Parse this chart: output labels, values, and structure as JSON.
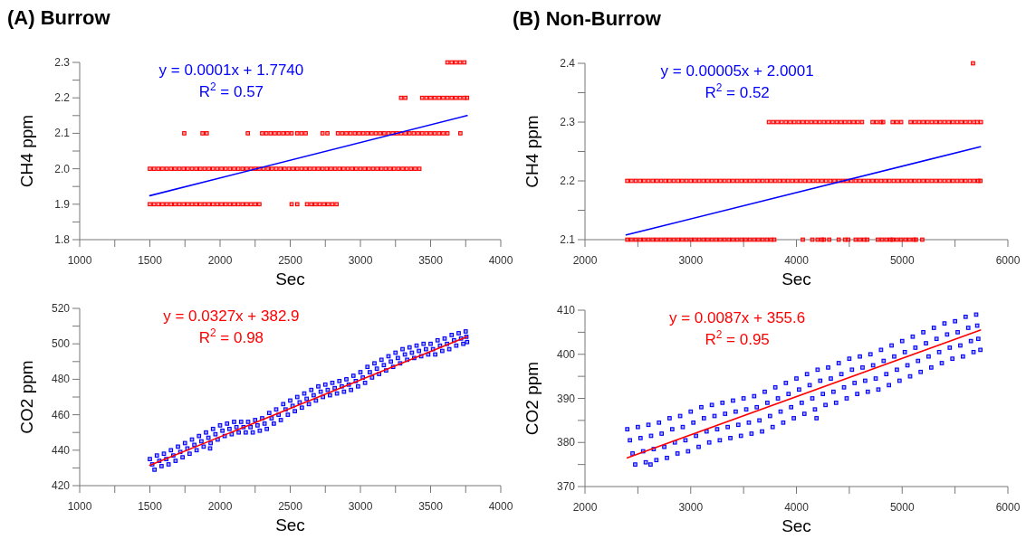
{
  "chart_data": [
    {
      "type": "scatter",
      "title": "(A) Burrow",
      "xlabel": "Sec",
      "ylabel": "CH4 ppm",
      "annotations": [
        "y = 0.0001x + 1.7740",
        "R$^{2}$ = 0.57"
      ],
      "xlim": [
        1000,
        4000
      ],
      "ylim": [
        1.8,
        2.3
      ],
      "xticks": [
        1000,
        {
          "value": 1250,
          "label": null
        },
        1500,
        {
          "value": 1750,
          "label": null
        },
        2000,
        {
          "value": 2250,
          "label": null
        },
        2500,
        {
          "value": 2750,
          "label": null
        },
        3000,
        {
          "value": 3250,
          "label": null
        },
        3500,
        {
          "value": 3750,
          "label": null
        },
        4000
      ],
      "yticks": [
        1.8,
        {
          "value": 1.85,
          "label": null
        },
        1.9,
        {
          "value": 1.95,
          "label": null
        },
        {
          "value": 2,
          "label": "2.0"
        },
        {
          "value": 2.05,
          "label": null
        },
        2.1,
        {
          "value": 2.15,
          "label": null
        },
        2.2,
        {
          "value": 2.25,
          "label": null
        },
        2.3
      ],
      "series": [
        {
          "type": "scatter",
          "color": "#ff0000",
          "marker": "square",
          "x": [
            1500,
            1530,
            1560,
            1590,
            1620,
            1650,
            1680,
            1710,
            1740,
            1770,
            1800,
            1830,
            1860,
            1890,
            1920,
            1950,
            1980,
            2010,
            2040,
            2070,
            2100,
            2130,
            2160,
            2190,
            2220,
            2250,
            2280,
            2510,
            2550,
            2620,
            2650,
            2680,
            2710,
            2740,
            2770,
            2800,
            2830
          ],
          "values": [
            1.9,
            1.9,
            1.9,
            1.9,
            1.9,
            1.9,
            1.9,
            1.9,
            1.9,
            1.9,
            1.9,
            1.9,
            1.9,
            1.9,
            1.9,
            1.9,
            1.9,
            1.9,
            1.9,
            1.9,
            1.9,
            1.9,
            1.9,
            1.9,
            1.9,
            1.9,
            1.9,
            1.9,
            1.9,
            1.9,
            1.9,
            1.9,
            1.9,
            1.9,
            1.9,
            1.9,
            1.9
          ]
        },
        {
          "type": "scatter",
          "color": "#ff0000",
          "marker": "square",
          "x": [
            1500,
            1530,
            1560,
            1590,
            1620,
            1650,
            1680,
            1710,
            1740,
            1770,
            1800,
            1830,
            1860,
            1890,
            1920,
            1950,
            1980,
            2010,
            2040,
            2070,
            2100,
            2130,
            2160,
            2190,
            2220,
            2250,
            2280,
            2310,
            2340,
            2370,
            2400,
            2430,
            2460,
            2490,
            2520,
            2550,
            2580,
            2610,
            2640,
            2670,
            2700,
            2730,
            2760,
            2790,
            2820,
            2850,
            2880,
            2910,
            2940,
            2970,
            3000,
            3030,
            3060,
            3090,
            3120,
            3150,
            3180,
            3210,
            3240,
            3270,
            3300,
            3330,
            3360,
            3390,
            3420
          ],
          "values": [
            2,
            2,
            2,
            2,
            2,
            2,
            2,
            2,
            2,
            2,
            2,
            2,
            2,
            2,
            2,
            2,
            2,
            2,
            2,
            2,
            2,
            2,
            2,
            2,
            2,
            2,
            2,
            2,
            2,
            2,
            2,
            2,
            2,
            2,
            2,
            2,
            2,
            2,
            2,
            2,
            2,
            2,
            2,
            2,
            2,
            2,
            2,
            2,
            2,
            2,
            2,
            2,
            2,
            2,
            2,
            2,
            2,
            2,
            2,
            2,
            2,
            2,
            2,
            2,
            2
          ]
        },
        {
          "type": "scatter",
          "color": "#ff0000",
          "marker": "square",
          "x": [
            1745,
            1875,
            1905,
            2198,
            2300,
            2330,
            2360,
            2390,
            2420,
            2450,
            2480,
            2510,
            2550,
            2580,
            2610,
            2730,
            2765,
            2840,
            2870,
            2900,
            2930,
            2960,
            2990,
            3020,
            3050,
            3080,
            3110,
            3140,
            3170,
            3200,
            3230,
            3260,
            3290,
            3320,
            3350,
            3380,
            3410,
            3440,
            3470,
            3500,
            3530,
            3560,
            3590,
            3620,
            3712
          ],
          "values": [
            2.1,
            2.1,
            2.1,
            2.1,
            2.1,
            2.1,
            2.1,
            2.1,
            2.1,
            2.1,
            2.1,
            2.1,
            2.1,
            2.1,
            2.1,
            2.1,
            2.1,
            2.1,
            2.1,
            2.1,
            2.1,
            2.1,
            2.1,
            2.1,
            2.1,
            2.1,
            2.1,
            2.1,
            2.1,
            2.1,
            2.1,
            2.1,
            2.1,
            2.1,
            2.1,
            2.1,
            2.1,
            2.1,
            2.1,
            2.1,
            2.1,
            2.1,
            2.1,
            2.1,
            2.1
          ]
        },
        {
          "type": "scatter",
          "color": "#ff0000",
          "marker": "square",
          "x": [
            3290,
            3320,
            3440,
            3470,
            3500,
            3530,
            3560,
            3590,
            3620,
            3650,
            3680,
            3710,
            3740,
            3760
          ],
          "values": [
            2.2,
            2.2,
            2.2,
            2.2,
            2.2,
            2.2,
            2.2,
            2.2,
            2.2,
            2.2,
            2.2,
            2.2,
            2.2,
            2.2
          ]
        },
        {
          "type": "scatter",
          "color": "#ff0000",
          "marker": "square",
          "x": [
            3620,
            3650,
            3680,
            3710,
            3740
          ],
          "values": [
            2.3,
            2.3,
            2.3,
            2.3,
            2.3
          ]
        },
        {
          "type": "line",
          "color": "#0000ff",
          "x": [
            1500,
            3760
          ],
          "values": [
            1.924,
            2.15
          ]
        }
      ]
    },
    {
      "type": "scatter",
      "title": "(B) Non-Burrow",
      "xlabel": "Sec",
      "ylabel": "CH4 ppm",
      "annotations": [
        "y = 0.00005x + 2.0001",
        "R$^{2}$ = 0.52"
      ],
      "xlim": [
        2000,
        6000
      ],
      "ylim": [
        2.1,
        2.4
      ],
      "xticks": [
        2000,
        {
          "value": 2500,
          "label": null
        },
        3000,
        {
          "value": 3500,
          "label": null
        },
        4000,
        {
          "value": 4500,
          "label": null
        },
        5000,
        {
          "value": 5500,
          "label": null
        },
        6000
      ],
      "yticks": [
        2.1,
        {
          "value": 2.15,
          "label": null
        },
        2.2,
        {
          "value": 2.25,
          "label": null
        },
        2.3,
        {
          "value": 2.35,
          "label": null
        },
        2.4
      ],
      "series": [
        {
          "type": "scatter",
          "color": "#ff0000",
          "marker": "square",
          "x": [
            2400,
            2440,
            2480,
            2520,
            2560,
            2600,
            2640,
            2680,
            2720,
            2760,
            2800,
            2840,
            2880,
            2920,
            2960,
            3000,
            3040,
            3080,
            3120,
            3160,
            3200,
            3240,
            3280,
            3320,
            3360,
            3400,
            3440,
            3480,
            3520,
            3560,
            3600,
            3640,
            3680,
            3720,
            3760,
            3790,
            4060,
            4150,
            4200,
            4240,
            4260,
            4310,
            4400,
            4460,
            4490,
            4560,
            4600,
            4640,
            4670,
            4770,
            4810,
            4850,
            4890,
            4910,
            4950,
            4990,
            5030,
            5070,
            5110,
            5130,
            5190
          ],
          "values": [
            2.1,
            2.1,
            2.1,
            2.1,
            2.1,
            2.1,
            2.1,
            2.1,
            2.1,
            2.1,
            2.1,
            2.1,
            2.1,
            2.1,
            2.1,
            2.1,
            2.1,
            2.1,
            2.1,
            2.1,
            2.1,
            2.1,
            2.1,
            2.1,
            2.1,
            2.1,
            2.1,
            2.1,
            2.1,
            2.1,
            2.1,
            2.1,
            2.1,
            2.1,
            2.1,
            2.1,
            2.1,
            2.1,
            2.1,
            2.1,
            2.1,
            2.1,
            2.1,
            2.1,
            2.1,
            2.1,
            2.1,
            2.1,
            2.1,
            2.1,
            2.1,
            2.1,
            2.1,
            2.1,
            2.1,
            2.1,
            2.1,
            2.1,
            2.1,
            2.1,
            2.1
          ]
        },
        {
          "type": "scatter",
          "color": "#ff0000",
          "marker": "square",
          "x": [
            2400,
            2440,
            2480,
            2520,
            2560,
            2600,
            2640,
            2680,
            2720,
            2760,
            2800,
            2840,
            2880,
            2920,
            2960,
            3000,
            3040,
            3080,
            3120,
            3160,
            3200,
            3240,
            3280,
            3320,
            3360,
            3400,
            3440,
            3480,
            3520,
            3560,
            3600,
            3640,
            3680,
            3720,
            3760,
            3800,
            3840,
            3880,
            3920,
            3960,
            4000,
            4040,
            4080,
            4120,
            4160,
            4200,
            4240,
            4280,
            4320,
            4360,
            4400,
            4440,
            4480,
            4520,
            4560,
            4600,
            4640,
            4680,
            4720,
            4760,
            4800,
            4840,
            4880,
            4920,
            4960,
            5000,
            5040,
            5080,
            5120,
            5160,
            5200,
            5240,
            5280,
            5320,
            5360,
            5400,
            5440,
            5480,
            5520,
            5560,
            5600,
            5640,
            5680,
            5720,
            5740
          ],
          "values": [
            2.2,
            2.2,
            2.2,
            2.2,
            2.2,
            2.2,
            2.2,
            2.2,
            2.2,
            2.2,
            2.2,
            2.2,
            2.2,
            2.2,
            2.2,
            2.2,
            2.2,
            2.2,
            2.2,
            2.2,
            2.2,
            2.2,
            2.2,
            2.2,
            2.2,
            2.2,
            2.2,
            2.2,
            2.2,
            2.2,
            2.2,
            2.2,
            2.2,
            2.2,
            2.2,
            2.2,
            2.2,
            2.2,
            2.2,
            2.2,
            2.2,
            2.2,
            2.2,
            2.2,
            2.2,
            2.2,
            2.2,
            2.2,
            2.2,
            2.2,
            2.2,
            2.2,
            2.2,
            2.2,
            2.2,
            2.2,
            2.2,
            2.2,
            2.2,
            2.2,
            2.2,
            2.2,
            2.2,
            2.2,
            2.2,
            2.2,
            2.2,
            2.2,
            2.2,
            2.2,
            2.2,
            2.2,
            2.2,
            2.2,
            2.2,
            2.2,
            2.2,
            2.2,
            2.2,
            2.2,
            2.2,
            2.2,
            2.2,
            2.2,
            2.2
          ]
        },
        {
          "type": "scatter",
          "color": "#ff0000",
          "marker": "square",
          "x": [
            3740,
            3780,
            3820,
            3860,
            3900,
            3940,
            3980,
            4020,
            4060,
            4100,
            4140,
            4180,
            4220,
            4260,
            4300,
            4340,
            4380,
            4420,
            4460,
            4500,
            4540,
            4580,
            4620,
            4720,
            4760,
            4800,
            4820,
            4910,
            4950,
            4990,
            5080,
            5120,
            5160,
            5200,
            5240,
            5280,
            5320,
            5360,
            5400,
            5440,
            5480,
            5520,
            5560,
            5600,
            5640,
            5680,
            5710,
            5745
          ],
          "values": [
            2.3,
            2.3,
            2.3,
            2.3,
            2.3,
            2.3,
            2.3,
            2.3,
            2.3,
            2.3,
            2.3,
            2.3,
            2.3,
            2.3,
            2.3,
            2.3,
            2.3,
            2.3,
            2.3,
            2.3,
            2.3,
            2.3,
            2.3,
            2.3,
            2.3,
            2.3,
            2.3,
            2.3,
            2.3,
            2.3,
            2.3,
            2.3,
            2.3,
            2.3,
            2.3,
            2.3,
            2.3,
            2.3,
            2.3,
            2.3,
            2.3,
            2.3,
            2.3,
            2.3,
            2.3,
            2.3,
            2.3,
            2.3
          ]
        },
        {
          "type": "scatter",
          "color": "#ff0000",
          "marker": "square",
          "x": [
            5670
          ],
          "values": [
            2.4
          ]
        },
        {
          "type": "line",
          "color": "#0000ff",
          "x": [
            2390,
            5740
          ],
          "values": [
            2.108,
            2.258
          ]
        }
      ]
    },
    {
      "type": "scatter",
      "xlabel": "Sec",
      "ylabel": "CO2 ppm",
      "annotations": [
        "y = 0.0327x + 382.9",
        "R$^{2}$ = 0.98"
      ],
      "xlim": [
        1000,
        4000
      ],
      "ylim": [
        420,
        520
      ],
      "xticks": [
        1000,
        {
          "value": 1250,
          "label": null
        },
        1500,
        {
          "value": 1750,
          "label": null
        },
        2000,
        {
          "value": 2250,
          "label": null
        },
        2500,
        {
          "value": 2750,
          "label": null
        },
        3000,
        {
          "value": 3250,
          "label": null
        },
        3500,
        {
          "value": 3750,
          "label": null
        },
        4000
      ],
      "yticks": [
        420,
        {
          "value": 430,
          "label": null
        },
        440,
        {
          "value": 450,
          "label": null
        },
        460,
        {
          "value": 470,
          "label": null
        },
        480,
        {
          "value": 490,
          "label": null
        },
        500,
        {
          "value": 510,
          "label": null
        },
        520
      ],
      "series": [
        {
          "type": "scatter",
          "color": "#0000ff",
          "marker": "square",
          "x": [
            1500,
            1517,
            1533,
            1550,
            1567,
            1583,
            1600,
            1617,
            1633,
            1650,
            1667,
            1683,
            1700,
            1717,
            1733,
            1750,
            1767,
            1783,
            1800,
            1817,
            1833,
            1850,
            1867,
            1883,
            1900,
            1917,
            1933,
            1950,
            1967,
            1983,
            2000,
            2017,
            2033,
            2050,
            2067,
            2083,
            2100,
            2117,
            2133,
            2150,
            2167,
            2183,
            2200,
            2217,
            2233,
            2250,
            2267,
            2283,
            2300,
            2317,
            2333,
            2350,
            2367,
            2383,
            2400,
            2417,
            2433,
            2450,
            2467,
            2483,
            2500,
            2517,
            2533,
            2550,
            2567,
            2583,
            2600,
            2617,
            2633,
            2650,
            2667,
            2683,
            2700,
            2717,
            2733,
            2750,
            2767,
            2783,
            2800,
            2817,
            2833,
            2850,
            2867,
            2883,
            2900,
            2917,
            2933,
            2950,
            2967,
            2983,
            3000,
            3017,
            3033,
            3050,
            3067,
            3083,
            3100,
            3117,
            3133,
            3150,
            3167,
            3183,
            3200,
            3217,
            3233,
            3250,
            3267,
            3283,
            3300,
            3317,
            3333,
            3350,
            3367,
            3383,
            3400,
            3417,
            3433,
            3450,
            3467,
            3483,
            3500,
            3517,
            3533,
            3550,
            3567,
            3583,
            3600,
            3617,
            3633,
            3650,
            3667,
            3683,
            3700,
            3717,
            3733,
            3750,
            3755,
            3760,
            1929
          ],
          "values": [
            435,
            432,
            429,
            437,
            434,
            431,
            438,
            435,
            432,
            440,
            437,
            434,
            442,
            439,
            436,
            444,
            441,
            438,
            446,
            443,
            440,
            448,
            445,
            442,
            450,
            447,
            444,
            452,
            449,
            446,
            454,
            451,
            448,
            455,
            452,
            449,
            456,
            453,
            450,
            456,
            453,
            450,
            456,
            453,
            450,
            457,
            454,
            451,
            458,
            455,
            452,
            461,
            458,
            455,
            463,
            460,
            457,
            466,
            463,
            460,
            468,
            465,
            462,
            470,
            467,
            464,
            472,
            469,
            466,
            474,
            471,
            468,
            476,
            473,
            470,
            477,
            474,
            471,
            478,
            475,
            472,
            479,
            476,
            473,
            480,
            477,
            474,
            482,
            479,
            476,
            484,
            481,
            478,
            487,
            484,
            481,
            489,
            486,
            483,
            491,
            488,
            485,
            493,
            490,
            487,
            495,
            492,
            489,
            497,
            494,
            491,
            498,
            495,
            492,
            499,
            496,
            493,
            500,
            497,
            494,
            500,
            497,
            494,
            502,
            499,
            496,
            503,
            500,
            497,
            505,
            502,
            499,
            506,
            503,
            500,
            507,
            504,
            501,
            441
          ]
        },
        {
          "type": "line",
          "color": "#ff0000",
          "x": [
            1500,
            3760
          ],
          "values": [
            431.5,
            504
          ]
        }
      ]
    },
    {
      "type": "scatter",
      "xlabel": "Sec",
      "ylabel": "CO2 ppm",
      "annotations": [
        "y = 0.0087x + 355.6",
        "R$^{2}$ = 0.95"
      ],
      "xlim": [
        2000,
        6000
      ],
      "ylim": [
        370,
        410
      ],
      "xticks": [
        2000,
        {
          "value": 2500,
          "label": null
        },
        3000,
        {
          "value": 3500,
          "label": null
        },
        4000,
        {
          "value": 4500,
          "label": null
        },
        5000,
        {
          "value": 5500,
          "label": null
        },
        6000
      ],
      "yticks": [
        370,
        {
          "value": 375,
          "label": null
        },
        380,
        {
          "value": 385,
          "label": null
        },
        390,
        {
          "value": 395,
          "label": null
        },
        400,
        {
          "value": 405,
          "label": null
        },
        410
      ],
      "series": [
        {
          "type": "scatter",
          "color": "#0000ff",
          "marker": "square",
          "x": [
            2400,
            2425,
            2450,
            2475,
            2500,
            2525,
            2550,
            2575,
            2600,
            2625,
            2650,
            2675,
            2700,
            2725,
            2750,
            2775,
            2800,
            2825,
            2850,
            2875,
            2900,
            2925,
            2950,
            2975,
            3000,
            3025,
            3050,
            3075,
            3100,
            3125,
            3150,
            3175,
            3200,
            3225,
            3250,
            3275,
            3300,
            3325,
            3350,
            3375,
            3400,
            3425,
            3450,
            3475,
            3500,
            3525,
            3550,
            3575,
            3600,
            3625,
            3650,
            3675,
            3700,
            3725,
            3750,
            3775,
            3800,
            3825,
            3850,
            3875,
            3900,
            3925,
            3950,
            3975,
            4000,
            4025,
            4050,
            4075,
            4100,
            4125,
            4150,
            4175,
            4200,
            4225,
            4250,
            4275,
            4300,
            4325,
            4350,
            4375,
            4400,
            4425,
            4450,
            4475,
            4500,
            4525,
            4550,
            4575,
            4600,
            4625,
            4650,
            4675,
            4700,
            4725,
            4750,
            4775,
            4800,
            4825,
            4850,
            4875,
            4900,
            4925,
            4950,
            4975,
            5000,
            5025,
            5050,
            5075,
            5100,
            5125,
            5150,
            5175,
            5200,
            5225,
            5250,
            5275,
            5300,
            5325,
            5350,
            5375,
            5400,
            5425,
            5450,
            5475,
            5500,
            5525,
            5550,
            5575,
            5600,
            5625,
            5650,
            5675,
            5700,
            5710,
            5720,
            5740,
            2620,
            4190
          ],
          "values": [
            383,
            380.5,
            377.5,
            375,
            383.5,
            381,
            378,
            375.5,
            384,
            381.5,
            378.5,
            376,
            384.5,
            382,
            379,
            376.5,
            385.5,
            383,
            380,
            377.5,
            386,
            383.5,
            380.5,
            378,
            387,
            384.5,
            381.5,
            379,
            388,
            385.5,
            382.5,
            380,
            388.5,
            386,
            383,
            380.5,
            389,
            386.5,
            383.5,
            381,
            389.5,
            387,
            384,
            381.5,
            390,
            387.5,
            384.5,
            382,
            390.5,
            388,
            385,
            382.5,
            391.5,
            389,
            386,
            383.5,
            392.5,
            390,
            387,
            384.5,
            393.5,
            391,
            388,
            385.5,
            394.5,
            392,
            389,
            386.5,
            395.5,
            393,
            390,
            387.5,
            396.5,
            394,
            391,
            388.5,
            397,
            394.5,
            391.5,
            389,
            398,
            395.5,
            392.5,
            390,
            399,
            396.5,
            393.5,
            391,
            399.5,
            397,
            394,
            391.5,
            400,
            397.5,
            394.5,
            392,
            401,
            398.5,
            395.5,
            393,
            402,
            399.5,
            396.5,
            394,
            403,
            400.5,
            397.5,
            395,
            404,
            401.5,
            398.5,
            396,
            405,
            402.5,
            399.5,
            397,
            406,
            403.5,
            400.5,
            398,
            407,
            404.5,
            401.5,
            399,
            407.5,
            405,
            402,
            399.5,
            408.5,
            406,
            403,
            400.5,
            409,
            406.5,
            403.5,
            401,
            375,
            385.5
          ]
        },
        {
          "type": "line",
          "color": "#ff0000",
          "x": [
            2400,
            5740
          ],
          "values": [
            376.5,
            405.5
          ]
        }
      ]
    }
  ]
}
